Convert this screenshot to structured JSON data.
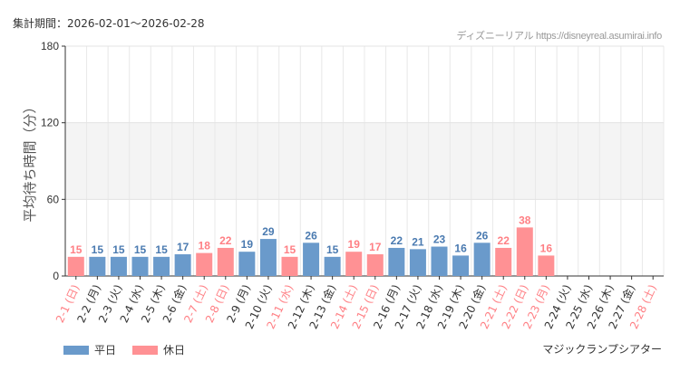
{
  "header": {
    "period": "集計期間：2026-02-01～2026-02-28",
    "credit": "ディズニーリアル https://disneyreal.asumirai.info"
  },
  "venue": "マジックランプシアター",
  "colors": {
    "weekday": "#6a9acb",
    "holiday": "#ff9194",
    "holiday_text": "#ff7f84",
    "weekday_label": "#4a7ab0",
    "band": "#f4f4f4"
  },
  "legend": [
    {
      "label": "平日",
      "color": "#6a9acb"
    },
    {
      "label": "休日",
      "color": "#ff9194"
    }
  ],
  "chart_data": {
    "type": "bar",
    "ylabel": "平均待ち時間（分）",
    "ylim": [
      0,
      180
    ],
    "yticks": [
      0,
      60,
      120,
      180
    ],
    "shaded_band": [
      60,
      120
    ],
    "grid": true,
    "legend_position": "bottom-left",
    "categories": [
      "2-1 (日)",
      "2-2 (月)",
      "2-3 (火)",
      "2-4 (水)",
      "2-5 (木)",
      "2-6 (金)",
      "2-7 (土)",
      "2-8 (日)",
      "2-9 (月)",
      "2-10 (火)",
      "2-11 (水)",
      "2-12 (木)",
      "2-13 (金)",
      "2-14 (土)",
      "2-15 (日)",
      "2-16 (月)",
      "2-17 (火)",
      "2-18 (水)",
      "2-19 (木)",
      "2-20 (金)",
      "2-21 (土)",
      "2-22 (日)",
      "2-23 (月)",
      "2-24 (火)",
      "2-25 (水)",
      "2-26 (木)",
      "2-27 (金)",
      "2-28 (土)"
    ],
    "holiday": [
      true,
      false,
      false,
      false,
      false,
      false,
      true,
      true,
      false,
      false,
      true,
      false,
      false,
      true,
      true,
      false,
      false,
      false,
      false,
      false,
      true,
      true,
      true,
      false,
      false,
      false,
      false,
      true
    ],
    "values": [
      15,
      15,
      15,
      15,
      15,
      17,
      18,
      22,
      19,
      29,
      15,
      26,
      15,
      19,
      17,
      22,
      21,
      23,
      16,
      26,
      22,
      38,
      16,
      null,
      null,
      null,
      null,
      null
    ]
  }
}
